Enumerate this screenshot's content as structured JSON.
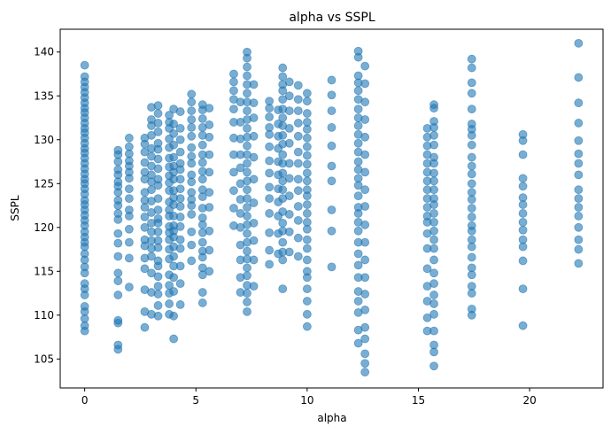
{
  "chart_data": {
    "type": "scatter",
    "title": "alpha vs SSPL",
    "xlabel": "alpha",
    "ylabel": "SSPL",
    "xlim": [
      -1.1,
      23.3
    ],
    "ylim": [
      101.7,
      142.6
    ],
    "xticks": [
      0,
      5,
      10,
      15,
      20
    ],
    "yticks": [
      105,
      110,
      115,
      120,
      125,
      130,
      135,
      140
    ],
    "grid": false,
    "marker_color": "#1f77b4",
    "marker_alpha": 0.6,
    "columns": [
      {
        "x": 0.0,
        "y": [
          108.2,
          108.8,
          109.6,
          110.4,
          111.0,
          112.3,
          113.0,
          113.6,
          114.8,
          115.5,
          116.3,
          117.0,
          117.8,
          118.3,
          118.9,
          119.5,
          120.2,
          120.8,
          121.4,
          122.0,
          122.6,
          123.1,
          123.8,
          124.4,
          125.0,
          125.5,
          126.1,
          126.7,
          127.3,
          127.9,
          128.5,
          129.0,
          129.6,
          130.2,
          130.8,
          131.3,
          131.9,
          132.5,
          133.1,
          133.6,
          134.2,
          134.8,
          135.4,
          136.0,
          136.6,
          137.2,
          138.5
        ]
      },
      {
        "x": 1.5,
        "y": [
          106.1,
          106.6,
          109.1,
          109.4,
          112.3,
          113.9,
          114.8,
          116.7,
          118.2,
          119.3,
          120.9,
          121.6,
          122.5,
          123.1,
          124.0,
          124.7,
          125.2,
          126.0,
          126.6,
          127.5,
          128.3,
          128.8
        ]
      },
      {
        "x": 2.0,
        "y": [
          113.2,
          116.5,
          118.3,
          119.8,
          121.3,
          122.0,
          123.3,
          124.4,
          125.6,
          126.3,
          127.0,
          127.6,
          128.4,
          129.2,
          130.2
        ]
      },
      {
        "x": 2.7,
        "y": [
          108.6,
          110.4,
          112.9,
          115.3,
          116.5,
          117.9,
          118.6,
          120.0,
          121.2,
          122.3,
          123.1,
          124.0,
          125.5,
          126.3,
          127.4,
          128.6,
          129.5,
          130.2
        ]
      },
      {
        "x": 3.0,
        "y": [
          110.1,
          112.6,
          114.8,
          116.7,
          117.6,
          118.5,
          119.5,
          120.5,
          121.7,
          123.0,
          124.3,
          125.2,
          126.0,
          127.0,
          128.1,
          129.0,
          130.5,
          131.6,
          132.3,
          133.7
        ]
      },
      {
        "x": 3.3,
        "y": [
          109.9,
          111.1,
          112.4,
          113.3,
          114.4,
          115.6,
          116.2,
          117.7,
          118.5,
          119.5,
          120.5,
          121.0,
          122.0,
          123.3,
          124.8,
          125.5,
          126.7,
          127.8,
          128.9,
          129.6,
          130.9,
          131.9,
          133.0,
          133.9
        ]
      },
      {
        "x": 3.8,
        "y": [
          110.1,
          111.3,
          112.5,
          113.4,
          114.6,
          116.4,
          117.5,
          118.6,
          119.4,
          120.1,
          121.3,
          122.0,
          122.9,
          124.2,
          125.1,
          125.9,
          126.9,
          127.9,
          129.1,
          130.1,
          131.3,
          132.0,
          132.8
        ]
      },
      {
        "x": 4.0,
        "y": [
          107.3,
          109.9,
          112.7,
          114.3,
          115.6,
          116.7,
          117.8,
          118.9,
          119.6,
          120.2,
          121.3,
          122.6,
          123.4,
          124.2,
          125.5,
          126.3,
          127.0,
          128.0,
          129.4,
          130.7,
          131.8,
          133.5
        ]
      },
      {
        "x": 4.3,
        "y": [
          111.2,
          113.6,
          115.6,
          117.6,
          118.6,
          120.1,
          121.2,
          122.4,
          123.3,
          124.4,
          125.5,
          126.6,
          127.3,
          128.6,
          130.0,
          131.3,
          133.2
        ]
      },
      {
        "x": 4.8,
        "y": [
          116.2,
          118.0,
          119.5,
          121.5,
          122.5,
          123.2,
          124.0,
          125.2,
          126.0,
          127.3,
          128.1,
          129.1,
          130.4,
          131.4,
          132.3,
          133.3,
          134.3,
          135.2
        ]
      },
      {
        "x": 5.3,
        "y": [
          111.4,
          112.6,
          114.6,
          115.4,
          116.6,
          117.3,
          118.3,
          119.4,
          120.3,
          121.1,
          122.2,
          123.5,
          124.3,
          125.5,
          126.4,
          127.4,
          128.3,
          129.4,
          130.5,
          131.4,
          132.4,
          133.4,
          134.0
        ]
      },
      {
        "x": 5.6,
        "y": [
          115.0,
          117.4,
          119.6,
          122.3,
          124.0,
          126.3,
          128.3,
          130.3,
          131.7,
          133.6
        ]
      },
      {
        "x": 6.7,
        "y": [
          120.2,
          122.2,
          124.2,
          126.3,
          128.3,
          130.2,
          132.0,
          133.5,
          134.6,
          135.6,
          136.6,
          137.5
        ]
      },
      {
        "x": 7.0,
        "y": [
          112.6,
          114.3,
          116.3,
          118.0,
          120.0,
          121.6,
          123.2,
          125.0,
          126.8,
          128.3,
          130.1,
          132.0,
          134.3
        ]
      },
      {
        "x": 7.3,
        "y": [
          110.4,
          111.5,
          112.5,
          113.4,
          114.5,
          115.4,
          116.4,
          117.3,
          118.3,
          119.3,
          120.3,
          121.3,
          122.3,
          123.3,
          124.3,
          125.3,
          126.3,
          127.3,
          128.3,
          129.3,
          130.3,
          131.3,
          132.3,
          133.3,
          134.3,
          135.3,
          136.3,
          137.3,
          138.3,
          139.3,
          140.0
        ]
      },
      {
        "x": 7.6,
        "y": [
          113.3,
          116.3,
          118.5,
          120.5,
          122.8,
          125.5,
          128.0,
          130.4,
          132.5,
          134.2,
          136.3
        ]
      },
      {
        "x": 8.3,
        "y": [
          115.8,
          117.4,
          119.4,
          121.6,
          123.3,
          124.6,
          126.2,
          127.6,
          129.2,
          130.6,
          131.4,
          132.6,
          133.6,
          134.4
        ]
      },
      {
        "x": 8.7,
        "y": [
          117.0,
          119.3,
          121.3,
          122.9,
          124.4,
          126.0,
          127.5,
          129.0,
          130.4,
          131.8,
          133.4
        ]
      },
      {
        "x": 8.9,
        "y": [
          113.0,
          116.3,
          117.2,
          118.3,
          119.6,
          120.5,
          121.8,
          123.3,
          124.3,
          125.3,
          126.2,
          127.3,
          128.3,
          129.5,
          130.5,
          131.6,
          132.5,
          133.5,
          134.6,
          135.6,
          136.3,
          137.2,
          138.2
        ]
      },
      {
        "x": 9.2,
        "y": [
          117.2,
          119.5,
          121.5,
          123.6,
          125.6,
          127.3,
          129.6,
          131.3,
          133.3,
          135.0,
          136.6
        ]
      },
      {
        "x": 9.6,
        "y": [
          116.7,
          118.8,
          120.8,
          122.4,
          124.2,
          125.5,
          127.3,
          128.6,
          130.4,
          131.9,
          133.3,
          134.6,
          136.2
        ]
      },
      {
        "x": 10.0,
        "y": [
          108.7,
          110.1,
          111.6,
          113.0,
          114.3,
          115.0,
          116.3,
          117.6,
          118.6,
          119.8,
          120.6,
          121.6,
          122.6,
          123.6,
          124.3,
          125.3,
          126.2,
          127.2,
          128.2,
          129.2,
          130.2,
          131.2,
          132.0,
          133.0,
          134.4,
          135.3
        ]
      },
      {
        "x": 11.1,
        "y": [
          115.5,
          119.6,
          122.0,
          125.3,
          127.0,
          129.3,
          131.4,
          133.3,
          135.1,
          136.8
        ]
      },
      {
        "x": 12.3,
        "y": [
          106.8,
          108.3,
          110.3,
          111.6,
          112.7,
          114.3,
          115.7,
          117.0,
          118.3,
          119.6,
          120.6,
          121.6,
          122.3,
          123.6,
          124.8,
          125.6,
          126.6,
          127.5,
          128.6,
          129.6,
          130.6,
          131.6,
          132.5,
          133.5,
          134.6,
          135.6,
          136.5,
          137.3,
          139.4,
          140.1
        ]
      },
      {
        "x": 12.6,
        "y": [
          103.5,
          104.5,
          105.6,
          107.3,
          108.6,
          110.6,
          112.4,
          114.3,
          116.3,
          118.3,
          120.3,
          122.4,
          124.3,
          126.3,
          128.3,
          130.3,
          132.3,
          134.3,
          136.4,
          138.4
        ]
      },
      {
        "x": 15.4,
        "y": [
          108.2,
          109.7,
          111.6,
          113.3,
          115.3,
          117.6,
          119.3,
          120.6,
          121.3,
          122.3,
          123.3,
          124.3,
          125.3,
          126.3,
          127.3,
          128.3,
          129.3,
          130.3,
          131.3
        ]
      },
      {
        "x": 15.7,
        "y": [
          104.2,
          105.8,
          106.6,
          108.2,
          110.1,
          111.3,
          112.3,
          113.6,
          114.8,
          116.3,
          117.6,
          118.6,
          119.6,
          120.6,
          121.6,
          122.6,
          123.3,
          124.3,
          125.3,
          126.2,
          127.3,
          128.0,
          129.4,
          130.5,
          131.4,
          132.1,
          133.6,
          134.0
        ]
      },
      {
        "x": 17.4,
        "y": [
          110.0,
          110.7,
          112.5,
          113.3,
          114.6,
          115.4,
          116.6,
          117.8,
          118.6,
          119.6,
          120.2,
          121.2,
          122.2,
          123.2,
          124.0,
          125.0,
          126.1,
          127.0,
          128.0,
          129.4,
          130.5,
          131.2,
          131.8,
          133.5,
          135.3,
          136.5,
          138.2,
          139.2
        ]
      },
      {
        "x": 19.7,
        "y": [
          108.8,
          113.0,
          116.2,
          117.8,
          118.6,
          119.7,
          120.6,
          121.6,
          122.6,
          123.4,
          124.7,
          125.6,
          128.3,
          129.9,
          130.6
        ]
      },
      {
        "x": 22.2,
        "y": [
          115.9,
          117.5,
          118.6,
          120.0,
          121.3,
          122.3,
          123.3,
          124.3,
          126.0,
          127.3,
          128.4,
          129.9,
          131.9,
          134.2,
          137.1,
          141.0
        ]
      }
    ]
  }
}
